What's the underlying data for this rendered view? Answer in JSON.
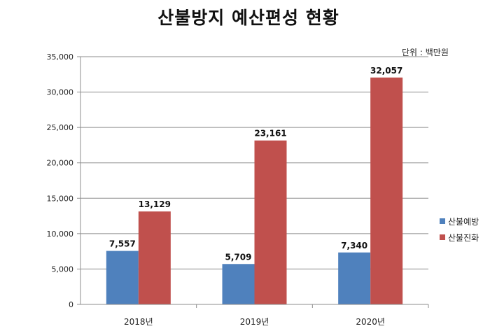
{
  "chart_data": {
    "type": "bar",
    "title": "산불방지 예산편성 현황",
    "unit_note": "단위 : 백만원",
    "categories": [
      "2018년",
      "2019년",
      "2020년"
    ],
    "series": [
      {
        "name": "산불예방",
        "color": "#4f81bd",
        "values": [
          7557,
          5709,
          7340
        ],
        "labels": [
          "7,557",
          "5,709",
          "7,340"
        ]
      },
      {
        "name": "산불진화",
        "color": "#c0504d",
        "values": [
          13129,
          23161,
          32057
        ],
        "labels": [
          "13,129",
          "23,161",
          "32,057"
        ]
      }
    ],
    "ylim": [
      0,
      35000
    ],
    "yticks": [
      0,
      5000,
      10000,
      15000,
      20000,
      25000,
      30000,
      35000
    ],
    "ytick_labels": [
      "0",
      "5,000",
      "10,000",
      "15,000",
      "20,000",
      "25,000",
      "30,000",
      "35,000"
    ],
    "grid": true,
    "legend_position": "right"
  }
}
